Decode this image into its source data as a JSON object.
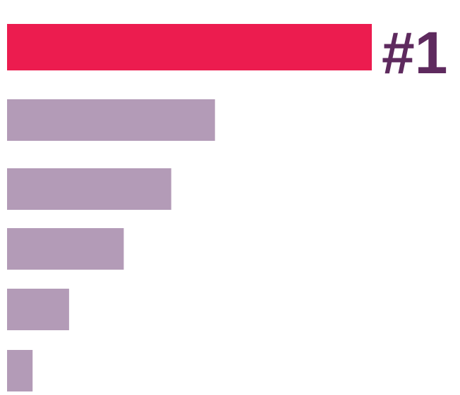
{
  "chart_data": {
    "type": "bar",
    "orientation": "horizontal",
    "values": [
      100,
      57,
      45,
      32,
      17,
      7
    ],
    "highlight_index": 0,
    "annotation": "#1",
    "colors": {
      "highlight": "#EC1C4F",
      "bar": "#B39BB7",
      "annotation": "#5E2A5E"
    }
  }
}
